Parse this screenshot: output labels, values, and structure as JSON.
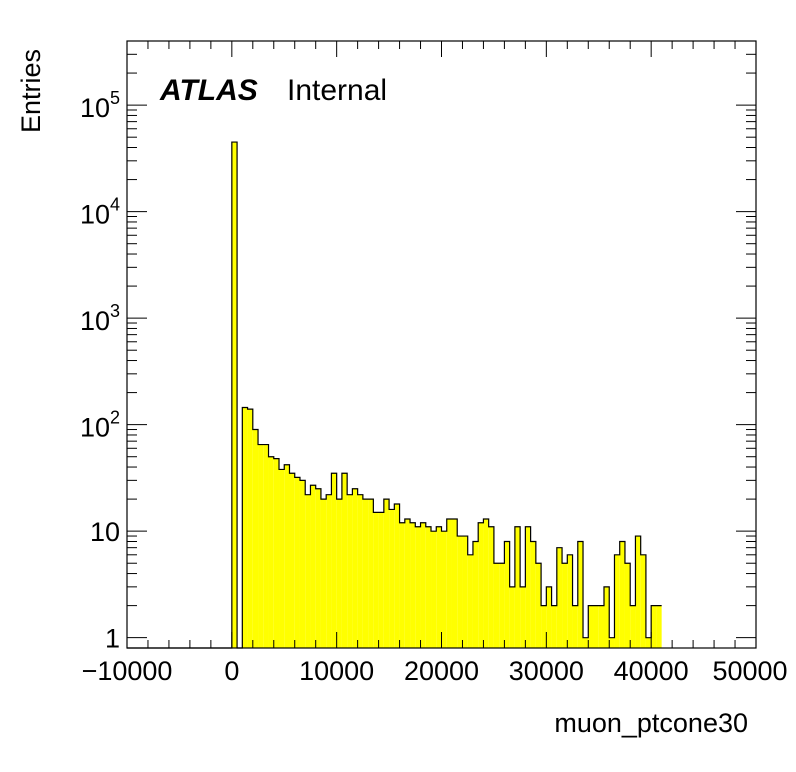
{
  "chart_data": {
    "type": "bar",
    "title": "",
    "xlabel": "muon_ptcone30",
    "ylabel": "Entries",
    "yscale": "log",
    "xlim": [
      -10000,
      50000
    ],
    "ylim": [
      0.8,
      400000
    ],
    "grid": false,
    "fill_color": "#ffff00",
    "line_color": "#000000",
    "atlas_label": {
      "bold": "ATLAS",
      "normal": "Internal"
    },
    "x_ticks": [
      {
        "value": -10000,
        "label": "−10000"
      },
      {
        "value": 0,
        "label": "0"
      },
      {
        "value": 10000,
        "label": "10000"
      },
      {
        "value": 20000,
        "label": "20000"
      },
      {
        "value": 30000,
        "label": "30000"
      },
      {
        "value": 40000,
        "label": "40000"
      },
      {
        "value": 50000,
        "label": "50000"
      }
    ],
    "y_ticks": [
      {
        "value": 1,
        "base": "1",
        "exp": ""
      },
      {
        "value": 10,
        "base": "10",
        "exp": ""
      },
      {
        "value": 100,
        "base": "10",
        "exp": "2"
      },
      {
        "value": 1000,
        "base": "10",
        "exp": "3"
      },
      {
        "value": 10000,
        "base": "10",
        "exp": "4"
      },
      {
        "value": 100000,
        "base": "10",
        "exp": "5"
      }
    ],
    "bins": {
      "start": -10000,
      "width": 500,
      "values": [
        0,
        0,
        0,
        0,
        0,
        0,
        0,
        0,
        0,
        0,
        0,
        0,
        0,
        0,
        0,
        0,
        0,
        0,
        0,
        0,
        45000,
        0,
        145,
        140,
        90,
        65,
        65,
        50,
        48,
        38,
        42,
        35,
        32,
        30,
        22,
        27,
        25,
        20,
        22,
        35,
        20,
        35,
        22,
        25,
        22,
        20,
        20,
        15,
        15,
        20,
        16,
        18,
        12,
        13,
        12,
        11,
        12,
        11,
        10,
        11,
        10,
        13,
        13,
        9,
        9,
        6,
        8,
        12,
        13,
        11,
        5,
        5,
        8,
        3,
        11,
        3,
        11,
        8,
        5,
        2,
        3,
        2,
        7,
        5,
        6,
        2,
        8,
        1,
        2,
        2,
        2,
        3,
        1,
        6,
        8,
        5,
        2,
        9,
        6,
        1,
        2,
        2
      ]
    }
  }
}
